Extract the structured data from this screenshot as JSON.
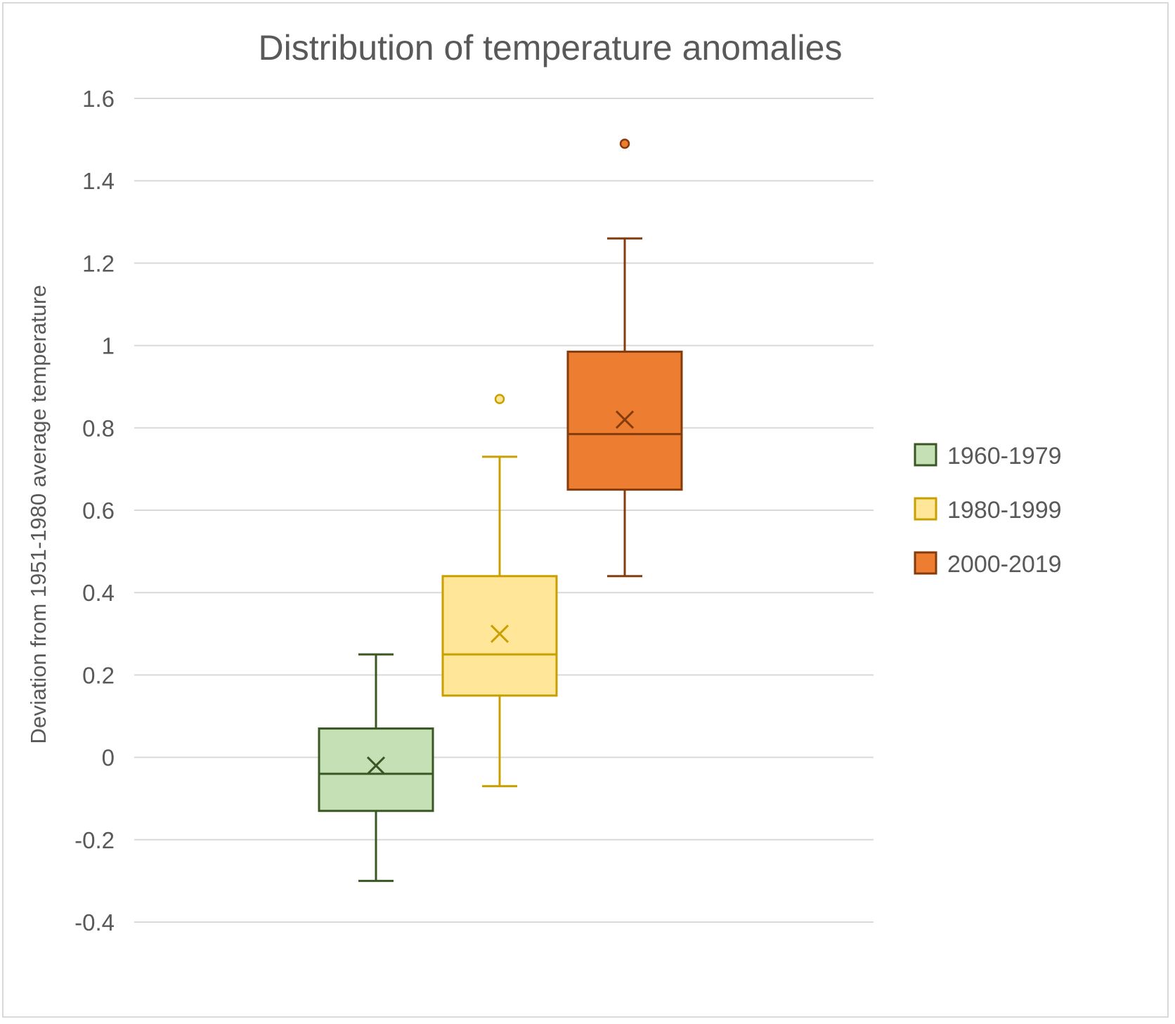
{
  "chart_data": {
    "type": "box",
    "title": "Distribution of temperature anomalies",
    "xlabel": "",
    "ylabel": "Deviation from 1951-1980 average temperature",
    "ylim": [
      -0.4,
      1.6
    ],
    "yticks": [
      -0.4,
      -0.2,
      0,
      0.2,
      0.4,
      0.6,
      0.8,
      1,
      1.2,
      1.4,
      1.6
    ],
    "ytick_labels": [
      "-0.4",
      "-0.2",
      "0",
      "0.2",
      "0.4",
      "0.6",
      "0.8",
      "1",
      "1.2",
      "1.4",
      "1.6"
    ],
    "grid": true,
    "legend_position": "right",
    "series": [
      {
        "name": "1960-1979",
        "fill": "#c5e0b4",
        "stroke": "#385723",
        "whisker_low": -0.3,
        "q1": -0.13,
        "median": -0.04,
        "q3": 0.07,
        "whisker_high": 0.25,
        "mean": -0.02,
        "outliers": []
      },
      {
        "name": "1980-1999",
        "fill": "#ffe699",
        "stroke": "#c9a000",
        "whisker_low": -0.07,
        "q1": 0.15,
        "median": 0.25,
        "q3": 0.44,
        "whisker_high": 0.73,
        "mean": 0.3,
        "outliers": [
          0.87
        ]
      },
      {
        "name": "2000-2019",
        "fill": "#ed7d31",
        "stroke": "#843c0c",
        "whisker_low": 0.44,
        "q1": 0.65,
        "median": 0.785,
        "q3": 0.985,
        "whisker_high": 1.26,
        "mean": 0.82,
        "outliers": [
          1.49
        ]
      }
    ]
  }
}
